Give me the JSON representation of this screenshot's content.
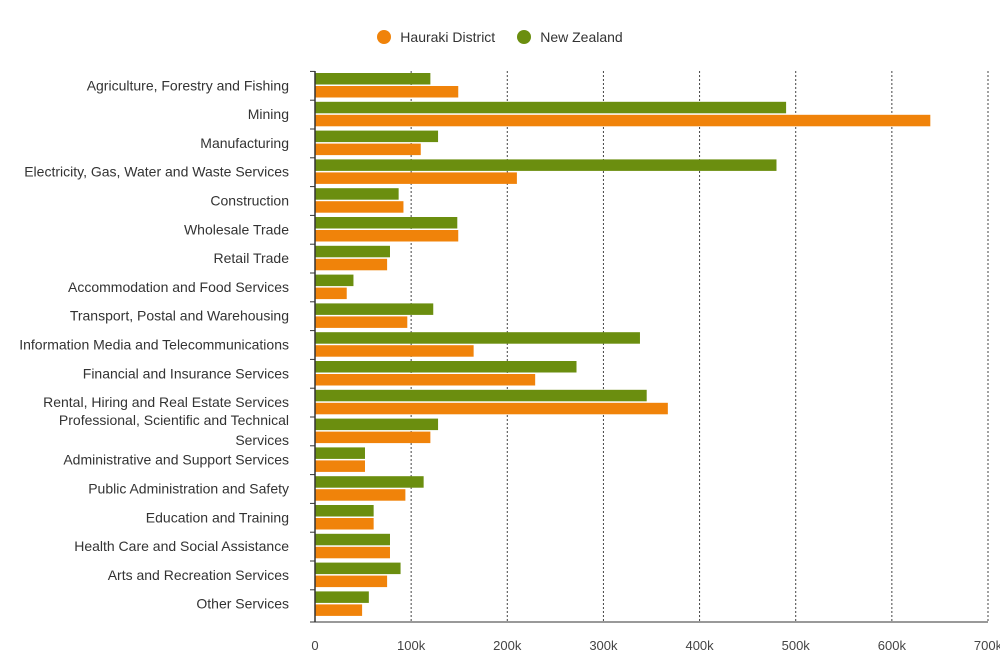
{
  "chart_data": {
    "type": "bar",
    "orientation": "horizontal",
    "title": "",
    "xlabel": "",
    "ylabel": "",
    "xlim": [
      0,
      700000
    ],
    "x_ticks": [
      0,
      100000,
      200000,
      300000,
      400000,
      500000,
      600000,
      700000
    ],
    "x_tick_labels": [
      "0",
      "100k",
      "200k",
      "300k",
      "400k",
      "500k",
      "600k",
      "700k"
    ],
    "grid": "vertical dotted",
    "legend": "top-center",
    "categories": [
      "Agriculture, Forestry and Fishing",
      "Mining",
      "Manufacturing",
      "Electricity, Gas, Water and Waste Services",
      "Construction",
      "Wholesale Trade",
      "Retail Trade",
      "Accommodation and Food Services",
      "Transport, Postal and Warehousing",
      "Information Media and Telecommunications",
      "Financial and Insurance Services",
      "Rental, Hiring and Real Estate Services",
      "Professional, Scientific and Technical Services",
      "Administrative and Support Services",
      "Public Administration and Safety",
      "Education and Training",
      "Health Care and Social Assistance",
      "Arts and Recreation Services",
      "Other Services"
    ],
    "series": [
      {
        "name": "New Zealand",
        "color": "#6b8e0f",
        "values": [
          120000,
          490000,
          128000,
          480000,
          87000,
          148000,
          78000,
          40000,
          123000,
          338000,
          272000,
          345000,
          128000,
          52000,
          113000,
          61000,
          78000,
          89000,
          56000
        ]
      },
      {
        "name": "Hauraki District",
        "color": "#f0830a",
        "values": [
          149000,
          640000,
          110000,
          210000,
          92000,
          149000,
          75000,
          33000,
          96000,
          165000,
          229000,
          367000,
          120000,
          52000,
          94000,
          61000,
          78000,
          75000,
          49000
        ]
      }
    ],
    "legend_order": [
      "Hauraki District",
      "New Zealand"
    ]
  }
}
